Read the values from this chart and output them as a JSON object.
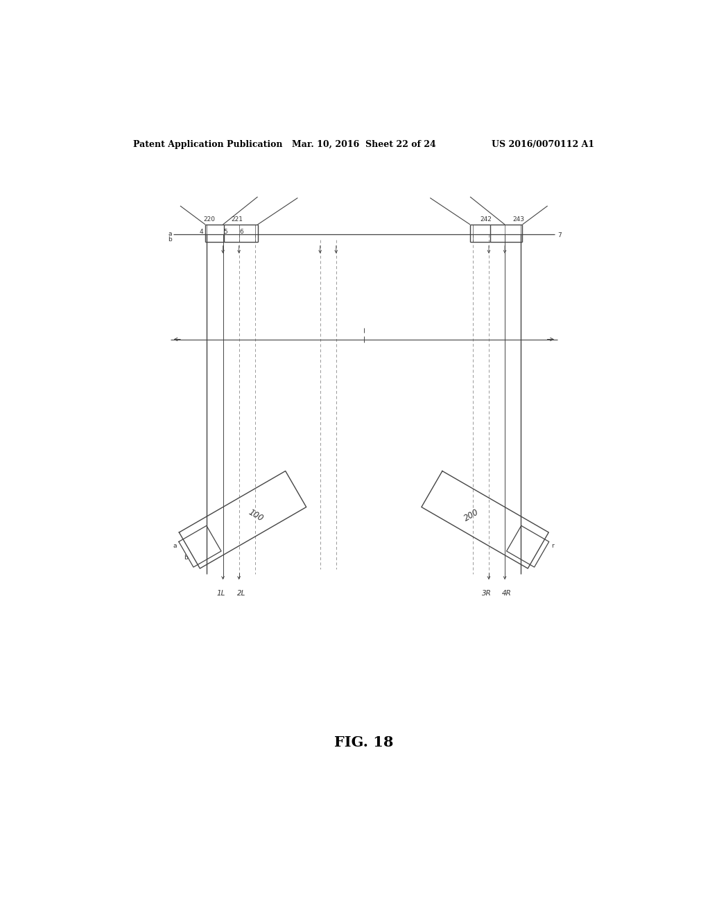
{
  "title_left": "Patent Application Publication",
  "title_mid": "Mar. 10, 2016  Sheet 22 of 24",
  "title_right": "US 2016/0070112 A1",
  "fig_label": "FIG. 18",
  "background": "#ffffff",
  "line_color": "#444444",
  "dashed_color": "#888888",
  "text_color": "#333333",
  "label_100": "100",
  "label_200": "200",
  "label_1L": "1L",
  "label_2L": "2L",
  "label_3R": "3R",
  "label_4R": "4R",
  "label_220": "220",
  "label_221": "221",
  "label_242": "242",
  "label_243": "243"
}
